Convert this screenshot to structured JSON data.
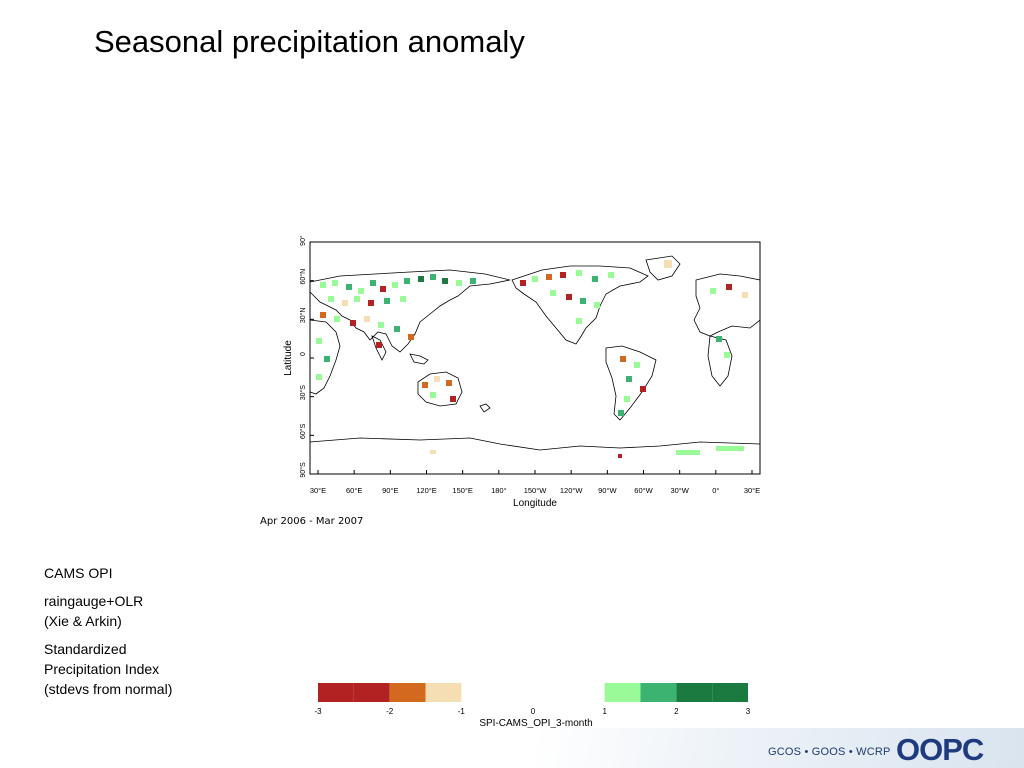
{
  "slide": {
    "title": "Seasonal precipitation anomaly"
  },
  "map": {
    "y_axis_label": "Latitude",
    "x_axis_label": "Longitude",
    "lat_ticks": [
      "90°N",
      "60°N",
      "30°N",
      "0",
      "30°S",
      "60°S",
      "90°S"
    ],
    "lon_ticks": [
      "30°E",
      "60°E",
      "90°E",
      "120°E",
      "150°E",
      "180°",
      "150°W",
      "120°W",
      "90°W",
      "60°W",
      "30°W",
      "0°",
      "30°E"
    ],
    "period": "Apr 2006 - Mar 2007"
  },
  "notes": {
    "source": "CAMS OPI",
    "method_line1": "raingauge+OLR",
    "method_line2": "(Xie & Arkin)",
    "index_line1": "Standardized",
    "index_line2": "Precipitation Index",
    "index_line3": "(stdevs from normal)"
  },
  "colorbar": {
    "title": "SPI-CAMS_OPI_3-month",
    "tick_labels": [
      "-3",
      "-2",
      "-1",
      "0",
      "1",
      "2",
      "3"
    ],
    "bins": [
      {
        "from": -3,
        "to": -2.5,
        "color": "#b22222"
      },
      {
        "from": -2.5,
        "to": -2,
        "color": "#b22222"
      },
      {
        "from": -2,
        "to": -1.5,
        "color": "#d2691e"
      },
      {
        "from": -1.5,
        "to": -1,
        "color": "#f5deb3"
      },
      {
        "from": 1,
        "to": 1.5,
        "color": "#98fb98"
      },
      {
        "from": 1.5,
        "to": 2,
        "color": "#3cb371"
      },
      {
        "from": 2,
        "to": 2.5,
        "color": "#1a7a3f"
      },
      {
        "from": 2.5,
        "to": 3,
        "color": "#1a7a3f"
      }
    ]
  },
  "footer": {
    "partners": "GCOS • GOOS • WCRP",
    "logo": "OOPC"
  }
}
